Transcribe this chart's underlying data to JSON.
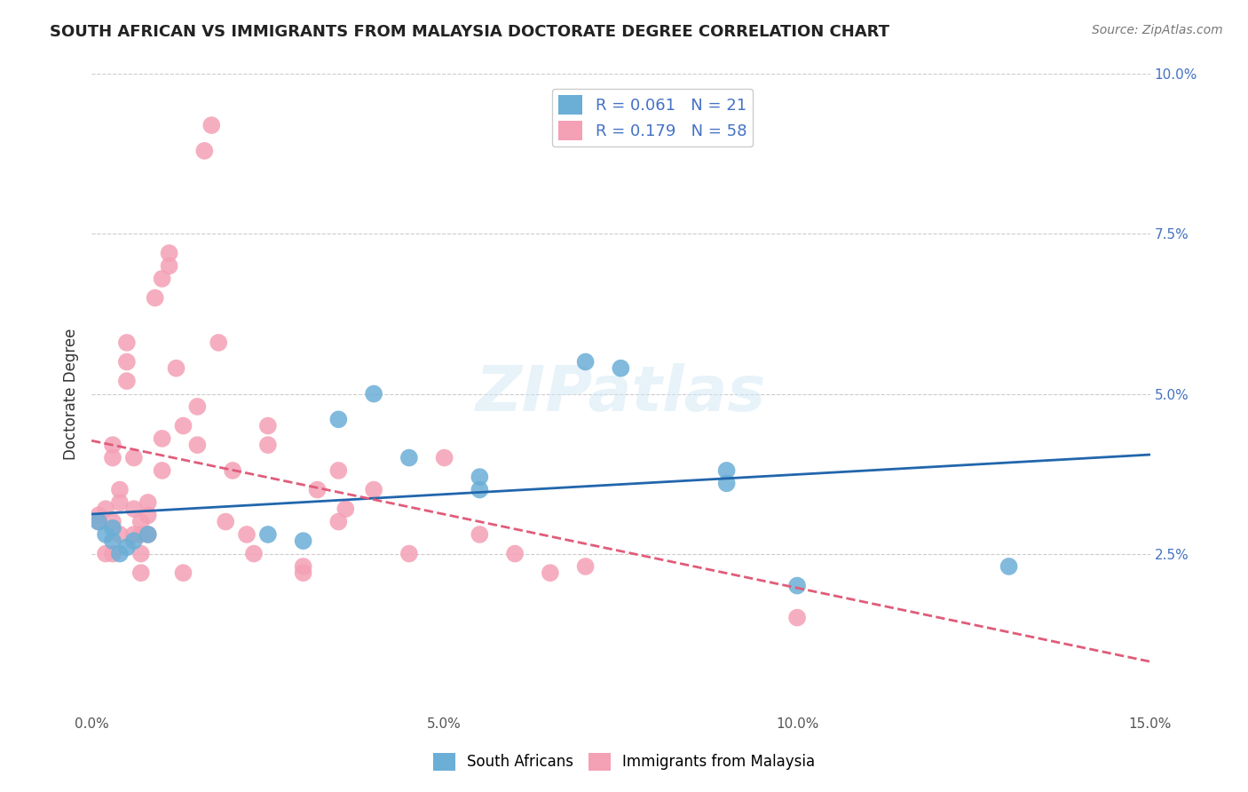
{
  "title": "SOUTH AFRICAN VS IMMIGRANTS FROM MALAYSIA DOCTORATE DEGREE CORRELATION CHART",
  "source": "Source: ZipAtlas.com",
  "xlabel_bottom": "",
  "ylabel": "Doctorate Degree",
  "x_min": 0.0,
  "x_max": 0.15,
  "y_min": 0.0,
  "y_max": 0.1,
  "x_ticks": [
    0.0,
    0.05,
    0.1,
    0.15
  ],
  "x_tick_labels": [
    "0.0%",
    "5.0%",
    "10.0%",
    "15.0%"
  ],
  "y_ticks_right": [
    0.025,
    0.05,
    0.075,
    0.1
  ],
  "y_tick_labels_right": [
    "2.5%",
    "5.0%",
    "7.5%",
    "10.0%"
  ],
  "blue_color": "#6baed6",
  "pink_color": "#f4a0b5",
  "blue_line_color": "#2166ac",
  "pink_line_color": "#e05c7a",
  "blue_R": 0.061,
  "blue_N": 21,
  "pink_R": 0.179,
  "pink_N": 58,
  "legend_label_blue": "South Africans",
  "legend_label_pink": "Immigrants from Malaysia",
  "watermark": "ZIPatlas",
  "blue_scatter_x": [
    0.001,
    0.002,
    0.003,
    0.003,
    0.004,
    0.005,
    0.006,
    0.008,
    0.025,
    0.03,
    0.035,
    0.04,
    0.045,
    0.055,
    0.055,
    0.07,
    0.075,
    0.09,
    0.09,
    0.1,
    0.13
  ],
  "blue_scatter_y": [
    0.03,
    0.028,
    0.027,
    0.029,
    0.025,
    0.026,
    0.027,
    0.028,
    0.028,
    0.027,
    0.046,
    0.05,
    0.04,
    0.035,
    0.037,
    0.055,
    0.054,
    0.038,
    0.036,
    0.02,
    0.023
  ],
  "pink_scatter_x": [
    0.001,
    0.001,
    0.002,
    0.002,
    0.003,
    0.003,
    0.003,
    0.003,
    0.004,
    0.004,
    0.004,
    0.005,
    0.005,
    0.005,
    0.006,
    0.006,
    0.006,
    0.007,
    0.007,
    0.007,
    0.007,
    0.008,
    0.008,
    0.008,
    0.009,
    0.01,
    0.01,
    0.01,
    0.011,
    0.011,
    0.012,
    0.013,
    0.013,
    0.015,
    0.015,
    0.016,
    0.017,
    0.018,
    0.019,
    0.02,
    0.022,
    0.023,
    0.025,
    0.025,
    0.03,
    0.03,
    0.032,
    0.035,
    0.035,
    0.036,
    0.04,
    0.045,
    0.05,
    0.055,
    0.06,
    0.065,
    0.07,
    0.1
  ],
  "pink_scatter_y": [
    0.03,
    0.031,
    0.025,
    0.032,
    0.03,
    0.025,
    0.04,
    0.042,
    0.033,
    0.028,
    0.035,
    0.055,
    0.058,
    0.052,
    0.028,
    0.032,
    0.04,
    0.028,
    0.03,
    0.025,
    0.022,
    0.031,
    0.028,
    0.033,
    0.065,
    0.068,
    0.043,
    0.038,
    0.07,
    0.072,
    0.054,
    0.022,
    0.045,
    0.042,
    0.048,
    0.088,
    0.092,
    0.058,
    0.03,
    0.038,
    0.028,
    0.025,
    0.042,
    0.045,
    0.023,
    0.022,
    0.035,
    0.038,
    0.03,
    0.032,
    0.035,
    0.025,
    0.04,
    0.028,
    0.025,
    0.022,
    0.023,
    0.015
  ],
  "blue_marker_size": 15,
  "pink_marker_size": 15
}
